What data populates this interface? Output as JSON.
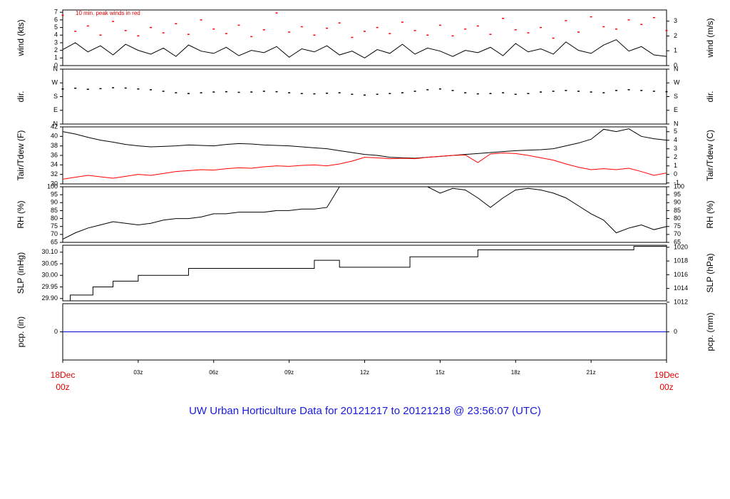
{
  "title": "UW Urban Horticulture Data for 20121217  to  20121218 @ 23:56:07  (UTC)",
  "chart_data": [
    {
      "type": "line",
      "ylabel": "wind (kts)",
      "y2label": "wind (m/s)",
      "annotation": "10 min. peak winds in red",
      "xlim": [
        0,
        24
      ],
      "ylim": [
        0,
        7.3
      ],
      "yticks": [
        0,
        1,
        2,
        3,
        4,
        5,
        6,
        7
      ],
      "y2lim": [
        0,
        3.755
      ],
      "y2ticks": [
        0,
        1,
        2,
        3
      ],
      "x": [
        0,
        0.5,
        1,
        1.5,
        2,
        2.5,
        3,
        3.5,
        4,
        4.5,
        5,
        5.5,
        6,
        6.5,
        7,
        7.5,
        8,
        8.5,
        9,
        9.5,
        10,
        10.5,
        11,
        11.5,
        12,
        12.5,
        13,
        13.5,
        14,
        14.5,
        15,
        15.5,
        16,
        16.5,
        17,
        17.5,
        18,
        18.5,
        19,
        19.5,
        20,
        20.5,
        21,
        21.5,
        22,
        22.5,
        23,
        23.5,
        24
      ],
      "series": [
        {
          "color": "#000000",
          "values": [
            2.1,
            3.0,
            1.8,
            2.6,
            1.4,
            2.8,
            2.0,
            1.5,
            2.3,
            1.2,
            2.7,
            1.9,
            1.6,
            2.4,
            1.3,
            2.0,
            1.7,
            2.5,
            1.1,
            2.2,
            1.8,
            2.6,
            1.4,
            1.9,
            1.0,
            2.1,
            1.6,
            2.8,
            1.5,
            2.3,
            1.9,
            1.2,
            2.0,
            1.7,
            2.4,
            1.3,
            2.9,
            1.8,
            2.2,
            1.5,
            3.1,
            2.0,
            1.6,
            2.7,
            3.4,
            1.9,
            2.5,
            1.4,
            1.2
          ]
        },
        {
          "type": "scatter",
          "color": "#ff0000",
          "values": [
            6.6,
            4.5,
            5.2,
            4.0,
            5.8,
            4.6,
            3.9,
            5.0,
            4.3,
            5.5,
            4.1,
            6.0,
            4.8,
            4.2,
            5.3,
            3.8,
            4.7,
            6.9,
            4.4,
            5.1,
            4.0,
            4.9,
            5.6,
            3.7,
            4.5,
            5.0,
            4.2,
            5.7,
            4.6,
            4.0,
            5.3,
            3.9,
            4.8,
            5.2,
            4.1,
            6.2,
            4.7,
            4.3,
            5.0,
            3.6,
            5.9,
            4.4,
            6.4,
            5.1,
            4.8,
            6.0,
            5.4,
            6.3,
            4.6
          ]
        }
      ]
    },
    {
      "type": "scatter",
      "ylabel": "dir.",
      "y2label": "dir.",
      "xlim": [
        0,
        24
      ],
      "ylim": [
        0,
        360
      ],
      "yticks": [
        {
          "value": 0,
          "label": "N"
        },
        {
          "value": 90,
          "label": "E"
        },
        {
          "value": 180,
          "label": "S"
        },
        {
          "value": 270,
          "label": "W"
        },
        {
          "value": 360,
          "label": "N"
        }
      ],
      "y2lim": [
        0,
        360
      ],
      "y2ticks": [
        {
          "value": 0,
          "label": "N"
        },
        {
          "value": 90,
          "label": "E"
        },
        {
          "value": 180,
          "label": "S"
        },
        {
          "value": 270,
          "label": "W"
        },
        {
          "value": 360,
          "label": "N"
        }
      ],
      "x": [
        0,
        0.5,
        1,
        1.5,
        2,
        2.5,
        3,
        3.5,
        4,
        4.5,
        5,
        5.5,
        6,
        6.5,
        7,
        7.5,
        8,
        8.5,
        9,
        9.5,
        10,
        10.5,
        11,
        11.5,
        12,
        12.5,
        13,
        13.5,
        14,
        14.5,
        15,
        15.5,
        16,
        16.5,
        17,
        17.5,
        18,
        18.5,
        19,
        19.5,
        20,
        20.5,
        21,
        21.5,
        22,
        22.5,
        23,
        23.5,
        24
      ],
      "series": [
        {
          "color": "#000000",
          "values": [
            230,
            235,
            228,
            232,
            238,
            236,
            230,
            225,
            215,
            205,
            200,
            205,
            210,
            212,
            208,
            210,
            215,
            212,
            205,
            200,
            198,
            202,
            205,
            195,
            190,
            195,
            200,
            205,
            215,
            225,
            230,
            220,
            205,
            198,
            200,
            205,
            195,
            200,
            210,
            215,
            220,
            215,
            210,
            205,
            220,
            225,
            220,
            215,
            212
          ]
        }
      ]
    },
    {
      "type": "line",
      "ylabel": "Tair/Tdew (F)",
      "y2label": "Tair/Tdew (C)",
      "xlim": [
        0,
        24
      ],
      "ylim": [
        30,
        42
      ],
      "yticks": [
        30,
        32,
        34,
        36,
        38,
        40,
        42
      ],
      "y2lim": [
        -1.11,
        5.56
      ],
      "y2ticks": [
        -1,
        0,
        1,
        2,
        3,
        4,
        5
      ],
      "x": [
        0,
        0.5,
        1,
        1.5,
        2,
        2.5,
        3,
        3.5,
        4,
        4.5,
        5,
        5.5,
        6,
        6.5,
        7,
        7.5,
        8,
        8.5,
        9,
        9.5,
        10,
        10.5,
        11,
        11.5,
        12,
        12.5,
        13,
        13.5,
        14,
        14.5,
        15,
        15.5,
        16,
        16.5,
        17,
        17.5,
        18,
        18.5,
        19,
        19.5,
        20,
        20.5,
        21,
        21.5,
        22,
        22.5,
        23,
        23.5,
        24
      ],
      "series": [
        {
          "color": "#000000",
          "values": [
            41.0,
            40.5,
            39.8,
            39.2,
            38.8,
            38.3,
            38.0,
            37.8,
            37.9,
            38.0,
            38.2,
            38.1,
            38.0,
            38.3,
            38.5,
            38.4,
            38.2,
            38.1,
            38.0,
            37.8,
            37.6,
            37.4,
            37.0,
            36.6,
            36.2,
            36.0,
            35.6,
            35.5,
            35.4,
            35.6,
            35.8,
            36.0,
            36.2,
            36.4,
            36.6,
            36.8,
            37.0,
            37.1,
            37.2,
            37.4,
            38.0,
            38.6,
            39.4,
            41.5,
            41.0,
            41.6,
            40.0,
            39.5,
            39.2
          ]
        },
        {
          "color": "#ff0000",
          "values": [
            31.0,
            31.4,
            31.8,
            31.5,
            31.2,
            31.6,
            32.0,
            31.8,
            32.2,
            32.6,
            32.8,
            33.0,
            32.9,
            33.2,
            33.4,
            33.3,
            33.6,
            33.8,
            33.7,
            33.9,
            34.0,
            33.8,
            34.2,
            34.8,
            35.6,
            35.5,
            35.3,
            35.4,
            35.3,
            35.6,
            35.8,
            36.0,
            36.1,
            34.5,
            36.3,
            36.5,
            36.4,
            36.0,
            35.5,
            35.0,
            34.2,
            33.5,
            33.0,
            33.2,
            33.0,
            33.3,
            32.6,
            31.8,
            32.3
          ]
        }
      ]
    },
    {
      "type": "line",
      "ylabel": "RH (%)",
      "y2label": "RH (%)",
      "xlim": [
        0,
        24
      ],
      "ylim": [
        65,
        100
      ],
      "yticks": [
        65,
        70,
        75,
        80,
        85,
        90,
        95,
        100
      ],
      "y2lim": [
        65,
        100
      ],
      "y2ticks": [
        65,
        70,
        75,
        80,
        85,
        90,
        95,
        100
      ],
      "x": [
        0,
        0.5,
        1,
        1.5,
        2,
        2.5,
        3,
        3.5,
        4,
        4.5,
        5,
        5.5,
        6,
        6.5,
        7,
        7.5,
        8,
        8.5,
        9,
        9.5,
        10,
        10.5,
        11,
        11.5,
        12,
        12.5,
        13,
        13.5,
        14,
        14.5,
        15,
        15.5,
        16,
        16.5,
        17,
        17.5,
        18,
        18.5,
        19,
        19.5,
        20,
        20.5,
        21,
        21.5,
        22,
        22.5,
        23,
        23.5,
        24
      ],
      "series": [
        {
          "color": "#000000",
          "values": [
            67,
            71,
            74,
            76,
            78,
            77,
            76,
            77,
            79,
            80,
            80,
            81,
            83,
            83,
            84,
            84,
            84,
            85,
            85,
            86,
            86,
            87,
            100,
            100,
            100,
            100,
            100,
            100,
            100,
            100,
            96,
            99,
            98,
            93,
            87,
            93,
            98,
            99,
            98,
            96,
            93,
            88,
            83,
            79,
            71,
            74,
            76,
            73,
            75
          ]
        }
      ]
    },
    {
      "type": "line",
      "ylabel": "SLP (inHg)",
      "y2label": "SLP (hPa)",
      "xlim": [
        0,
        24
      ],
      "ylim": [
        29.89,
        30.13
      ],
      "yticks": [
        {
          "value": 29.9,
          "label": "29.90"
        },
        {
          "value": 29.95,
          "label": "29.95"
        },
        {
          "value": 30.0,
          "label": "30.00"
        },
        {
          "value": 30.05,
          "label": "30.05"
        },
        {
          "value": 30.1,
          "label": "30.10"
        }
      ],
      "y2lim": [
        1012.2,
        1020.3
      ],
      "y2ticks": [
        1012,
        1014,
        1016,
        1018,
        1020
      ],
      "x": [
        0,
        0.3,
        0.3,
        1.2,
        1.2,
        2.0,
        2.0,
        3.0,
        3.0,
        5.0,
        5.0,
        10.0,
        10.0,
        11.0,
        11.0,
        13.8,
        13.8,
        16.5,
        16.5,
        22.7,
        22.7,
        24
      ],
      "series": [
        {
          "color": "#000000",
          "values": [
            29.89,
            29.89,
            29.915,
            29.915,
            29.95,
            29.95,
            29.975,
            29.975,
            30.0,
            30.0,
            30.03,
            30.03,
            30.065,
            30.065,
            30.035,
            30.035,
            30.08,
            30.08,
            30.11,
            30.11,
            30.125,
            30.125
          ]
        }
      ]
    },
    {
      "type": "line",
      "ylabel": "pcp. (in)",
      "y2label": "pcp. (mm)",
      "xlim": [
        0,
        24
      ],
      "ylim": [
        -1,
        1
      ],
      "yticks": [
        0
      ],
      "y2lim": [
        -1,
        1
      ],
      "y2ticks": [
        0
      ],
      "xticks": [
        {
          "value": 0,
          "label": [
            "18Dec",
            "00z"
          ]
        },
        {
          "value": 3,
          "label": "03z"
        },
        {
          "value": 6,
          "label": "06z"
        },
        {
          "value": 9,
          "label": "09z"
        },
        {
          "value": 12,
          "label": "12z"
        },
        {
          "value": 15,
          "label": "15z"
        },
        {
          "value": 18,
          "label": "18z"
        },
        {
          "value": 21,
          "label": "21z"
        },
        {
          "value": 24,
          "label": [
            "19Dec",
            "00z"
          ]
        }
      ],
      "x": [
        0,
        24
      ],
      "series": [
        {
          "color": "#0000cc",
          "values": [
            0,
            0
          ]
        }
      ]
    }
  ]
}
